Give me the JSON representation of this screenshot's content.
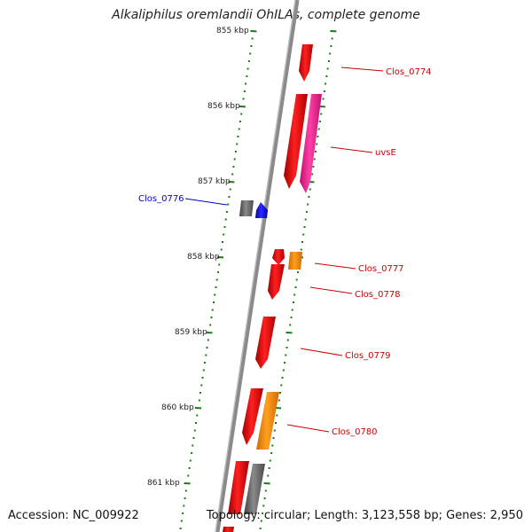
{
  "title": "Alkaliphilus oremlandii OhILAs, complete genome",
  "footer": {
    "accession": "Accession: NC_009922",
    "stats": "Topology: circular; Length: 3,123,558 bp; Genes: 2,950"
  },
  "kbp_labels": [
    "855 kbp",
    "856 kbp",
    "857 kbp",
    "858 kbp",
    "859 kbp",
    "860 kbp",
    "861 kbp"
  ],
  "gene_labels": [
    {
      "id": "g1",
      "text": "Clos_0774"
    },
    {
      "id": "g2",
      "text": "uvsE"
    },
    {
      "id": "g3",
      "text": "Clos_0776"
    },
    {
      "id": "g4",
      "text": "Clos_0777"
    },
    {
      "id": "g5",
      "text": "Clos_0778"
    },
    {
      "id": "g6",
      "text": "Clos_0779"
    },
    {
      "id": "g7",
      "text": "Clos_0780"
    }
  ],
  "colors": {
    "red": "#ee0000",
    "magenta": "#ff1493",
    "blue": "#0000ee",
    "orange": "#ff8c00",
    "gray": "#6e6e6e",
    "tick_green": "#1a7a1a",
    "label_red": "#cc0000",
    "label_blue": "#0000cc"
  }
}
